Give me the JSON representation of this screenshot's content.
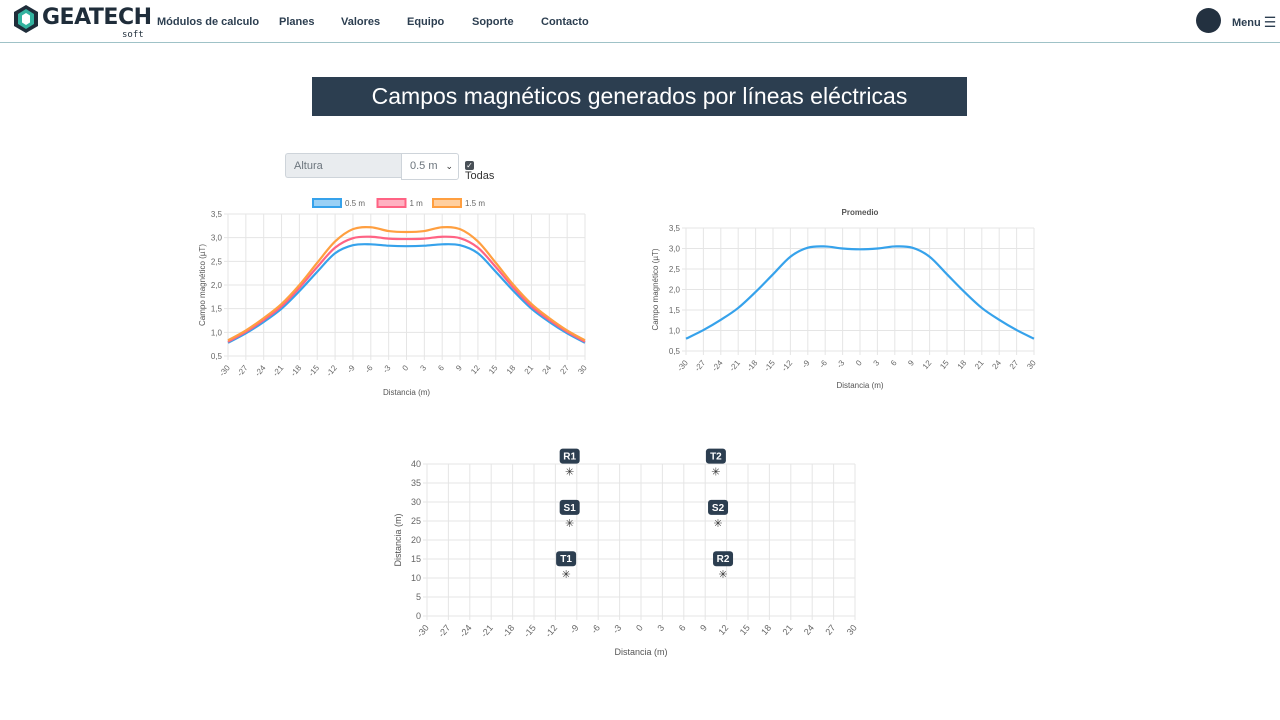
{
  "nav": {
    "logo_text": "GEATECH",
    "logo_sub": "soft",
    "links": [
      "Módulos de calculo",
      "Planes",
      "Valores",
      "Equipo",
      "Soporte",
      "Contacto"
    ],
    "menu_label": "Menu"
  },
  "page_title": "Campos magnéticos generados por líneas eléctricas",
  "height_control": {
    "label": "Altura",
    "selected": "0.5 m",
    "checkbox_label": "Todas",
    "checked": true
  },
  "colors": {
    "navy": "#2c3e50",
    "blue": "#36a2eb",
    "pink": "#ff6384",
    "orange": "#ff9f40"
  },
  "chart_data": [
    {
      "type": "line",
      "title": "",
      "xlabel": "Distancia (m)",
      "ylabel": "Campo magnético (µT)",
      "x": [
        -30,
        -27,
        -24,
        -21,
        -18,
        -15,
        -12,
        -9,
        -6,
        -3,
        0,
        3,
        6,
        9,
        12,
        15,
        18,
        21,
        24,
        27,
        30
      ],
      "ylim": [
        0.5,
        3.5
      ],
      "y_ticks": [
        "0,5",
        "1,0",
        "1,5",
        "2,0",
        "2,5",
        "3,0",
        "3,5"
      ],
      "legend_position": "top",
      "series": [
        {
          "name": "0.5 m",
          "color": "#36a2eb",
          "values": [
            0.78,
            0.98,
            1.22,
            1.5,
            1.87,
            2.28,
            2.67,
            2.84,
            2.86,
            2.83,
            2.82,
            2.83,
            2.86,
            2.84,
            2.67,
            2.28,
            1.87,
            1.5,
            1.22,
            0.98,
            0.78
          ]
        },
        {
          "name": "1 m",
          "color": "#ff6384",
          "values": [
            0.8,
            1.01,
            1.26,
            1.55,
            1.94,
            2.38,
            2.79,
            2.99,
            3.02,
            2.98,
            2.97,
            2.98,
            3.02,
            2.99,
            2.79,
            2.38,
            1.94,
            1.55,
            1.26,
            1.01,
            0.8
          ]
        },
        {
          "name": "1.5 m",
          "color": "#ff9f40",
          "values": [
            0.83,
            1.04,
            1.3,
            1.6,
            2.0,
            2.47,
            2.92,
            3.18,
            3.22,
            3.14,
            3.12,
            3.14,
            3.22,
            3.18,
            2.92,
            2.47,
            2.0,
            1.6,
            1.3,
            1.04,
            0.83
          ]
        }
      ]
    },
    {
      "type": "line",
      "title": "Promedio",
      "xlabel": "Distancia (m)",
      "ylabel": "Campo magnético (µT)",
      "x": [
        -30,
        -27,
        -24,
        -21,
        -18,
        -15,
        -12,
        -9,
        -6,
        -3,
        0,
        3,
        6,
        9,
        12,
        15,
        18,
        21,
        24,
        27,
        30
      ],
      "ylim": [
        0.5,
        3.5
      ],
      "y_ticks": [
        "0,5",
        "1,0",
        "1,5",
        "2,0",
        "2,5",
        "3,0",
        "3,5"
      ],
      "series": [
        {
          "color": "#36a2eb",
          "values": [
            0.8,
            1.01,
            1.26,
            1.55,
            1.94,
            2.37,
            2.8,
            3.02,
            3.05,
            3.0,
            2.98,
            3.0,
            3.05,
            3.02,
            2.8,
            2.37,
            1.94,
            1.55,
            1.26,
            1.01,
            0.8
          ]
        }
      ]
    },
    {
      "type": "scatter",
      "title": "",
      "xlabel": "Distancia (m)",
      "ylabel": "Distancia (m)",
      "xlim": [
        -30,
        30
      ],
      "ylim": [
        0,
        40
      ],
      "x_ticks": [
        -30,
        -27,
        -24,
        -21,
        -18,
        -15,
        -12,
        -9,
        -6,
        -3,
        0,
        3,
        6,
        9,
        12,
        15,
        18,
        21,
        24,
        27,
        30
      ],
      "y_ticks": [
        0,
        5,
        10,
        15,
        20,
        25,
        30,
        35,
        40
      ],
      "points": [
        {
          "label": "R1",
          "x": -10,
          "y": 38
        },
        {
          "label": "S1",
          "x": -10,
          "y": 24.5
        },
        {
          "label": "T1",
          "x": -10.5,
          "y": 11
        },
        {
          "label": "T2",
          "x": 10.5,
          "y": 38
        },
        {
          "label": "S2",
          "x": 10.8,
          "y": 24.5
        },
        {
          "label": "R2",
          "x": 11.5,
          "y": 11
        }
      ]
    }
  ]
}
